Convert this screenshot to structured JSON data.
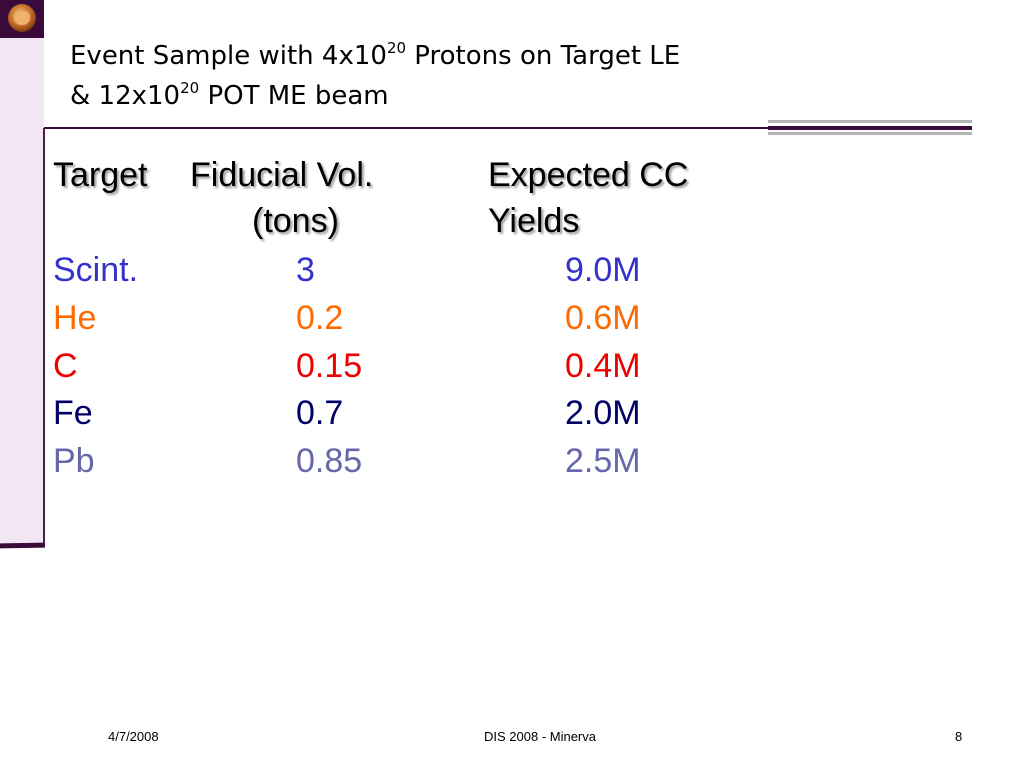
{
  "title": {
    "line1_pre": "Event Sample with  4x10",
    "line1_sup": "20",
    "line1_post": " Protons on Target LE",
    "line2_pre": "& 12x10",
    "line2_sup": "20",
    "line2_post": " POT ME beam"
  },
  "table": {
    "headers": {
      "target": "Target",
      "fiducial_line1": "Fiducial Vol.",
      "fiducial_line2": "(tons)",
      "expected_line1": "Expected CC",
      "expected_line2": "Yields"
    },
    "rows": [
      {
        "target": "Scint.",
        "fiducial": "3",
        "yield": "9.0M",
        "color": "#3333cc"
      },
      {
        "target": "He",
        "fiducial": "0.2",
        "yield": "0.6M",
        "color": "#ff6a00"
      },
      {
        "target": "C",
        "fiducial": "0.15",
        "yield": "0.4M",
        "color": "#ee0000"
      },
      {
        "target": "Fe",
        "fiducial": "0.7",
        "yield": "2.0M",
        "color": "#000066"
      },
      {
        "target": "Pb",
        "fiducial": "0.85",
        "yield": "2.5M",
        "color": "#6666aa"
      }
    ]
  },
  "footer": {
    "date": "4/7/2008",
    "center": "DIS 2008 - Minerva",
    "page": "8"
  },
  "colors": {
    "accent": "#3a0a3a",
    "band": "#f2e6f5"
  }
}
